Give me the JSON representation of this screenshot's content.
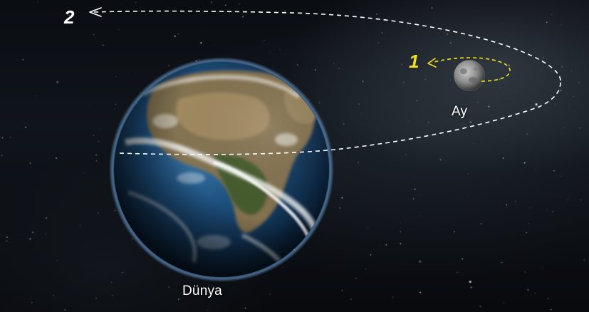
{
  "labels": {
    "earth": "Dünya",
    "moon": "Ay"
  },
  "orbits": [
    {
      "number": "2",
      "color": "#ffffff"
    },
    {
      "number": "1",
      "color": "#f2e21a"
    }
  ],
  "icons": {
    "earth": "earth-globe-icon",
    "moon": "moon-icon",
    "orbit_arrow_large": "arrowhead-left-icon",
    "orbit_arrow_small": "arrowhead-left-icon"
  },
  "colors": {
    "background": "#0a0d12",
    "orbit_large": "#ffffff",
    "orbit_small": "#f2e21a",
    "ocean": "#1d4f7d",
    "land": "#8a7550",
    "clouds": "#ffffff",
    "moon": "#8c8c8c"
  }
}
